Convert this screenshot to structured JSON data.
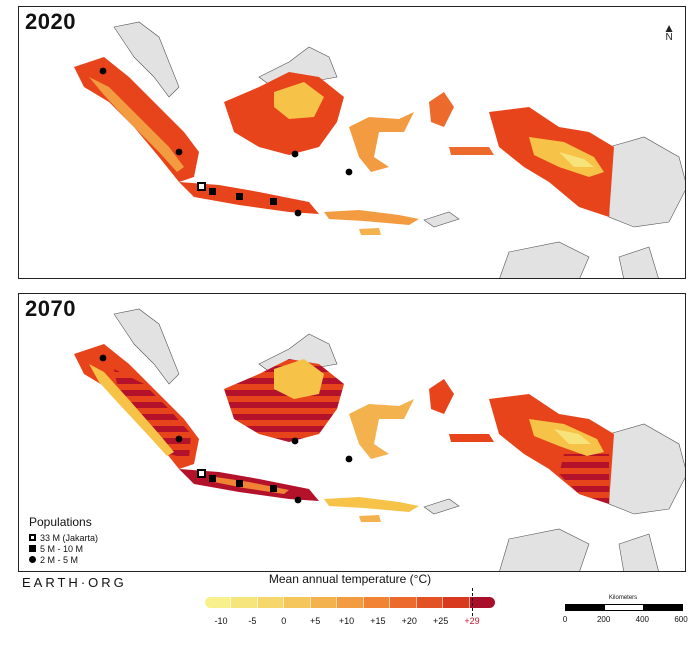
{
  "panels": [
    {
      "year": "2020"
    },
    {
      "year": "2070"
    }
  ],
  "north_label": "N",
  "populations": {
    "title": "Populations",
    "items": [
      {
        "symbol": "square-open",
        "label": "33 M (Jakarta)"
      },
      {
        "symbol": "square",
        "label": "5 M - 10 M"
      },
      {
        "symbol": "circle",
        "label": "2 M - 5 M"
      }
    ]
  },
  "brand": "EARTH·ORG",
  "colorbar": {
    "title": "Mean annual temperature (°C)",
    "ticks": [
      "-10",
      "-5",
      "0",
      "+5",
      "+10",
      "+15",
      "+20",
      "+25",
      "+29"
    ],
    "threshold_label": "+29",
    "threshold_color": "#c0162b",
    "colors": [
      "#f7f08c",
      "#f6e57b",
      "#f5d76b",
      "#f4c65c",
      "#f3b24e",
      "#f29b40",
      "#f08334",
      "#ec6a2b",
      "#e35224",
      "#d83a1f",
      "#a8102a"
    ]
  },
  "scale": {
    "label": "Kilometers",
    "ticks": [
      "0",
      "200",
      "400",
      "600"
    ]
  },
  "colors": {
    "land_other": "#e2e2e2",
    "sea": "#ffffff",
    "hot": "#e8441b",
    "extreme": "#b4122a",
    "mild": "#f6c248",
    "cool": "#f8e27a"
  }
}
